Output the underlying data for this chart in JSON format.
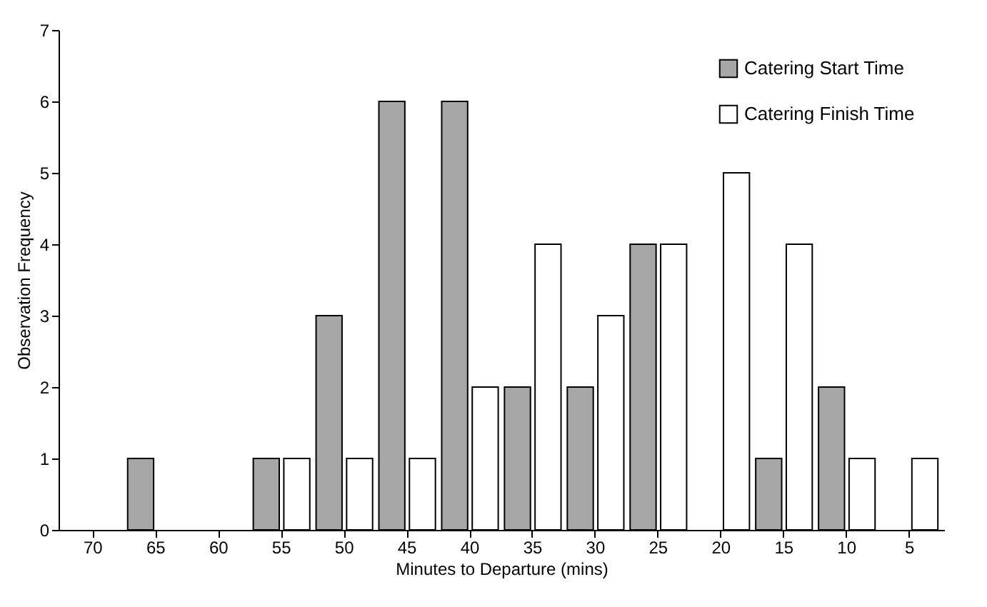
{
  "chart_data": {
    "type": "bar",
    "xlabel": "Minutes to Departure (mins)",
    "ylabel": "Observation Frequency",
    "categories": [
      "70",
      "65",
      "60",
      "55",
      "50",
      "45",
      "40",
      "35",
      "30",
      "25",
      "20",
      "15",
      "10",
      "5"
    ],
    "series": [
      {
        "name": "Catering Start Time",
        "color": "#a6a6a6",
        "values": [
          null,
          1,
          null,
          1,
          3,
          6,
          6,
          2,
          2,
          4,
          null,
          1,
          2,
          null
        ]
      },
      {
        "name": "Catering Finish Time",
        "color": "#ffffff",
        "values": [
          null,
          null,
          null,
          1,
          1,
          1,
          2,
          4,
          3,
          4,
          5,
          4,
          1,
          1
        ]
      }
    ],
    "ylim": [
      0,
      7
    ],
    "yticks": [
      0,
      1,
      2,
      3,
      4,
      5,
      6,
      7
    ],
    "grid": false,
    "legend": "top right"
  }
}
